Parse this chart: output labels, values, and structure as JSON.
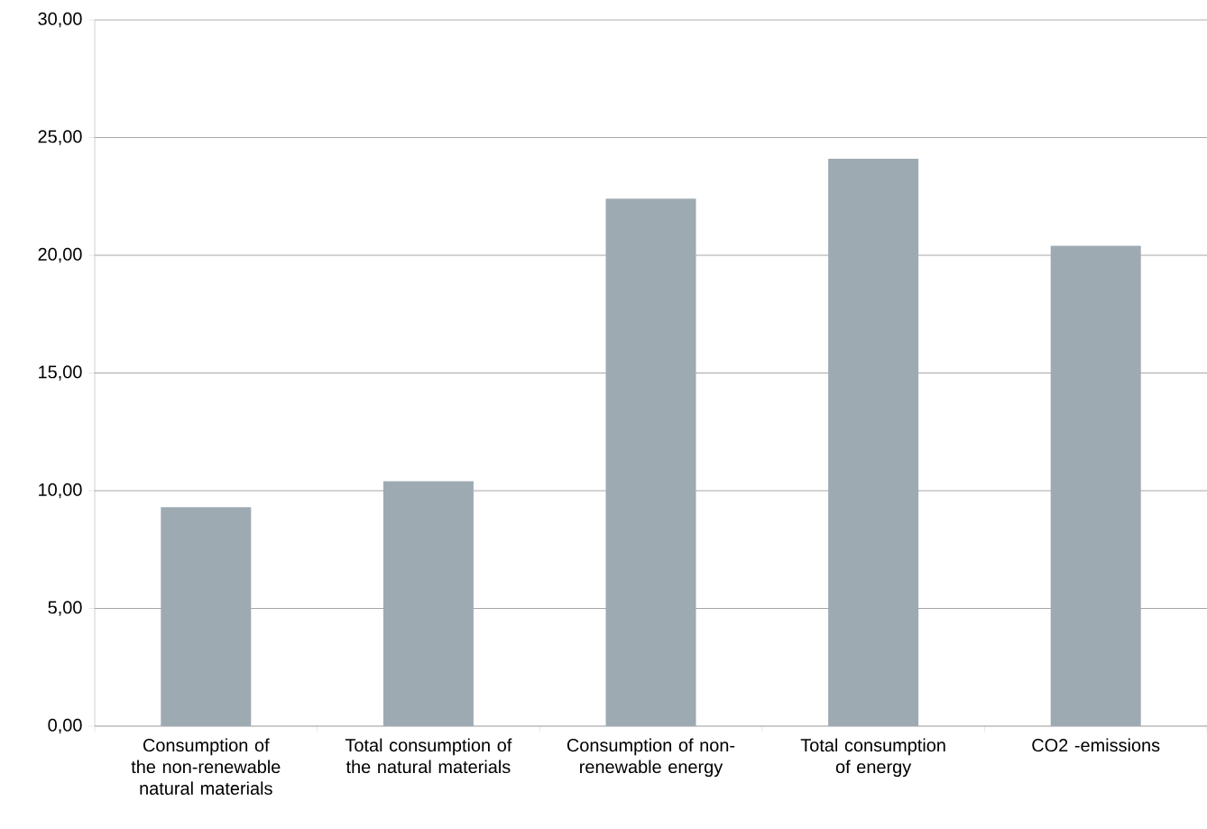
{
  "chart_data": {
    "type": "bar",
    "categories": [
      "Consumption of the non-renewable natural materials",
      "Total consumption of the natural materials",
      "Consumption of non-renewable energy",
      "Total consumption of energy",
      "CO2 -emissions"
    ],
    "values": [
      9.3,
      10.4,
      22.4,
      24.1,
      20.4
    ],
    "color": "#9eaab2",
    "ylim": [
      0,
      30
    ],
    "yticks": [
      {
        "value": 0,
        "label": "0,00"
      },
      {
        "value": 5,
        "label": "5,00"
      },
      {
        "value": 10,
        "label": "10,00"
      },
      {
        "value": 15,
        "label": "15,00"
      },
      {
        "value": 20,
        "label": "20,00"
      },
      {
        "value": 25,
        "label": "25,00"
      },
      {
        "value": 30,
        "label": "30,00"
      }
    ],
    "grid": "y"
  }
}
